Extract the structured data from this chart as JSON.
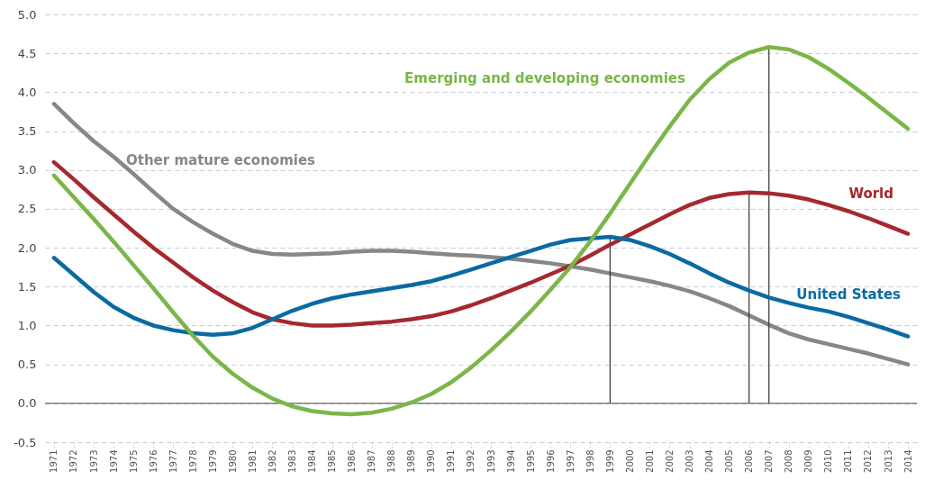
{
  "chart_data": {
    "type": "line",
    "categories": [
      "1971",
      "1972",
      "1973",
      "1974",
      "1975",
      "1976",
      "1977",
      "1978",
      "1979",
      "1980",
      "1981",
      "1982",
      "1983",
      "1984",
      "1985",
      "1986",
      "1987",
      "1988",
      "1989",
      "1990",
      "1991",
      "1992",
      "1993",
      "1994",
      "1995",
      "1996",
      "1997",
      "1998",
      "1999",
      "2000",
      "2001",
      "2002",
      "2003",
      "2004",
      "2005",
      "2006",
      "2007",
      "2008",
      "2009",
      "2010",
      "2011",
      "2012",
      "2013",
      "2014"
    ],
    "series": [
      {
        "name": "Other mature economies",
        "color": "#878787",
        "values": [
          3.85,
          3.6,
          3.37,
          3.17,
          2.95,
          2.72,
          2.5,
          2.33,
          2.18,
          2.05,
          1.96,
          1.92,
          1.91,
          1.92,
          1.93,
          1.95,
          1.96,
          1.96,
          1.95,
          1.93,
          1.91,
          1.9,
          1.88,
          1.86,
          1.83,
          1.8,
          1.76,
          1.72,
          1.67,
          1.62,
          1.57,
          1.51,
          1.44,
          1.35,
          1.25,
          1.13,
          1.01,
          0.9,
          0.82,
          0.76,
          0.7,
          0.64,
          0.57,
          0.5
        ]
      },
      {
        "name": "World",
        "color": "#a6282e",
        "values": [
          3.1,
          2.88,
          2.65,
          2.43,
          2.21,
          2.0,
          1.81,
          1.62,
          1.45,
          1.3,
          1.17,
          1.08,
          1.03,
          1.0,
          1.0,
          1.01,
          1.03,
          1.05,
          1.08,
          1.12,
          1.18,
          1.26,
          1.35,
          1.45,
          1.55,
          1.66,
          1.77,
          1.9,
          2.04,
          2.17,
          2.3,
          2.43,
          2.55,
          2.64,
          2.69,
          2.71,
          2.7,
          2.67,
          2.62,
          2.55,
          2.47,
          2.38,
          2.28,
          2.18
        ]
      },
      {
        "name": "United States",
        "color": "#0a6aa1",
        "values": [
          1.87,
          1.65,
          1.43,
          1.24,
          1.1,
          1.0,
          0.94,
          0.9,
          0.88,
          0.9,
          0.97,
          1.08,
          1.19,
          1.28,
          1.35,
          1.4,
          1.44,
          1.48,
          1.52,
          1.57,
          1.64,
          1.72,
          1.8,
          1.88,
          1.96,
          2.04,
          2.1,
          2.12,
          2.14,
          2.1,
          2.02,
          1.92,
          1.8,
          1.67,
          1.55,
          1.45,
          1.36,
          1.29,
          1.23,
          1.18,
          1.11,
          1.03,
          0.95,
          0.86
        ]
      },
      {
        "name": "Emerging and developing economies",
        "color": "#7ab648",
        "values": [
          2.93,
          2.65,
          2.37,
          2.08,
          1.78,
          1.48,
          1.17,
          0.87,
          0.6,
          0.38,
          0.2,
          0.06,
          -0.04,
          -0.1,
          -0.13,
          -0.14,
          -0.12,
          -0.07,
          0.01,
          0.12,
          0.27,
          0.46,
          0.68,
          0.92,
          1.18,
          1.46,
          1.75,
          2.08,
          2.44,
          2.82,
          3.2,
          3.56,
          3.9,
          4.17,
          4.38,
          4.51,
          4.58,
          4.55,
          4.45,
          4.3,
          4.12,
          3.93,
          3.73,
          3.53
        ]
      }
    ],
    "ylim": [
      -0.5,
      5.0
    ],
    "yticks": [
      {
        "value": -0.5,
        "label": "-0.5"
      },
      {
        "value": 0,
        "label": "0.0"
      },
      {
        "value": 0.5,
        "label": "0.5"
      },
      {
        "value": 1,
        "label": "1.0"
      },
      {
        "value": 1.5,
        "label": "1.5"
      },
      {
        "value": 2,
        "label": "2.0"
      },
      {
        "value": 2.5,
        "label": "2.5"
      },
      {
        "value": 3,
        "label": "3.0"
      },
      {
        "value": 3.5,
        "label": "3.5"
      },
      {
        "value": 4,
        "label": "4.0"
      },
      {
        "value": 4.5,
        "label": "4.5"
      },
      {
        "value": 5,
        "label": "5.0"
      }
    ],
    "ref_lines": [
      {
        "axis": "x",
        "value": "1999",
        "color": "#333333"
      },
      {
        "axis": "x",
        "value": "2006",
        "color": "#333333"
      },
      {
        "axis": "x",
        "value": "2007",
        "color": "#333333"
      }
    ],
    "grid": "y",
    "marker": "none",
    "line_style": "solid"
  }
}
